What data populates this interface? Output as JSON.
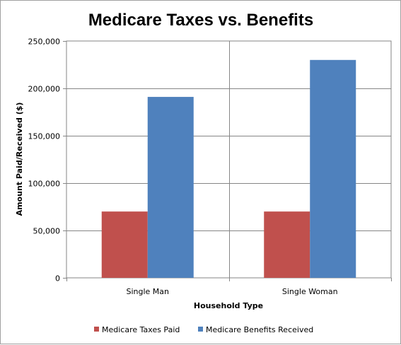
{
  "chart_data": {
    "type": "bar",
    "title": "Medicare Taxes vs. Benefits",
    "xlabel": "Household Type",
    "ylabel": "Amount Paid/Received  ($)",
    "categories": [
      "Single Man",
      "Single Woman"
    ],
    "series": [
      {
        "name": "Medicare Taxes Paid",
        "values": [
          70000,
          70000
        ],
        "color": "#c0504d"
      },
      {
        "name": "Medicare Benefits Received",
        "values": [
          191000,
          230000
        ],
        "color": "#4f81bd"
      }
    ],
    "ylim": [
      0,
      250000
    ],
    "yticks": [
      0,
      50000,
      100000,
      150000,
      200000,
      250000
    ],
    "ytick_labels": [
      "0",
      "50,000",
      "100,000",
      "150,000",
      "200,000",
      "250,000"
    ],
    "grid": true,
    "legend": "bottom"
  }
}
